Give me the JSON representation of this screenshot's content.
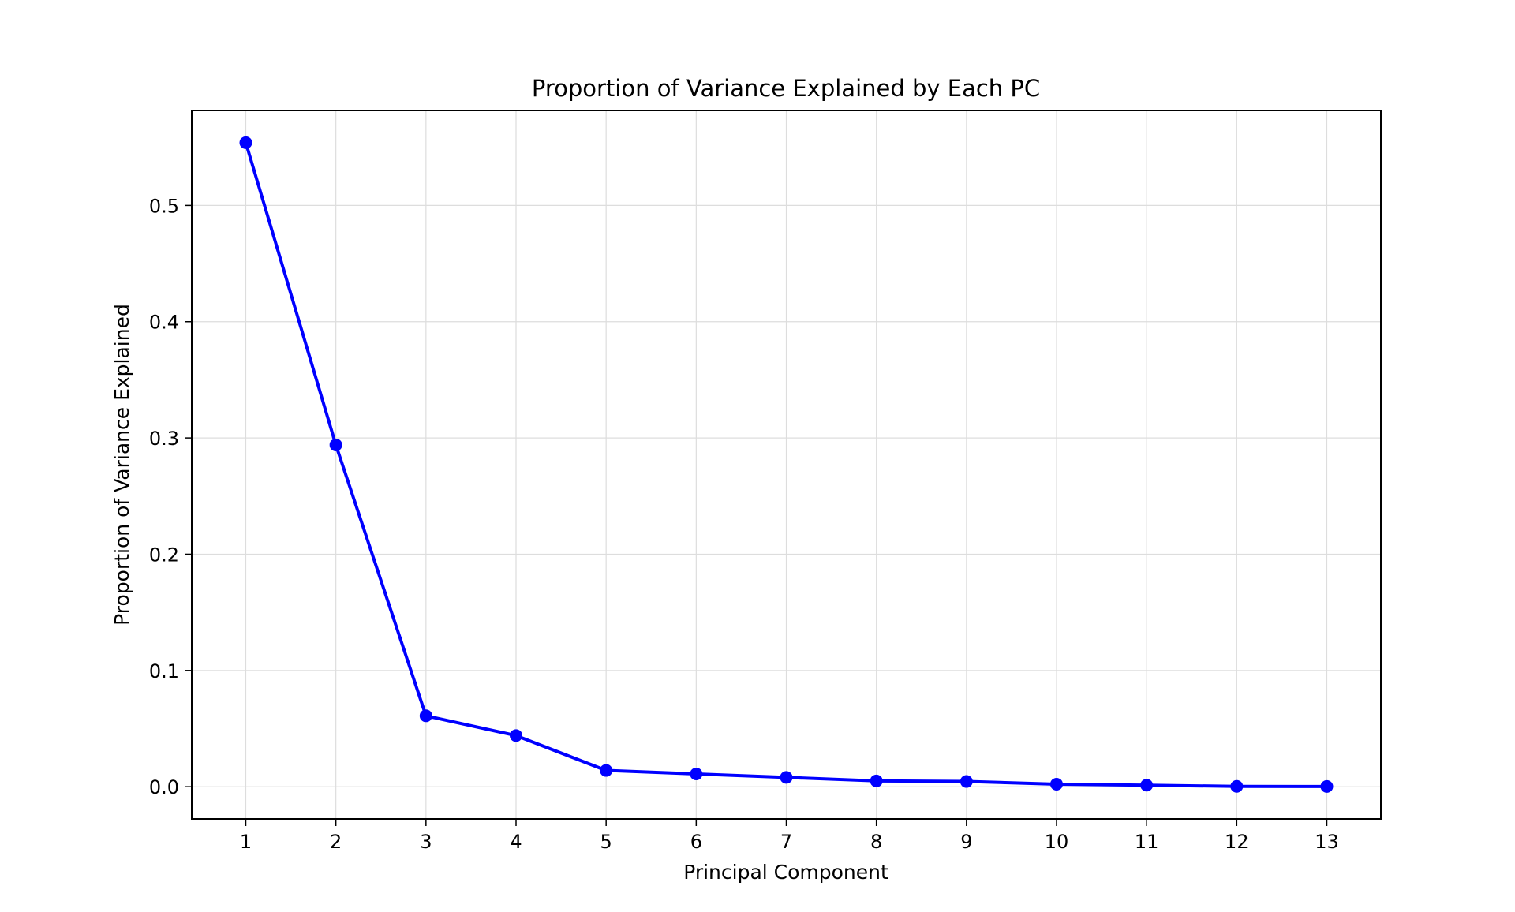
{
  "chart_data": {
    "type": "line",
    "title": "Proportion of Variance Explained by Each PC",
    "xlabel": "Principal Component",
    "ylabel": "Proportion of Variance Explained",
    "x": [
      1,
      2,
      3,
      4,
      5,
      6,
      7,
      8,
      9,
      10,
      11,
      12,
      13
    ],
    "xticks": [
      "1",
      "2",
      "3",
      "4",
      "5",
      "6",
      "7",
      "8",
      "9",
      "10",
      "11",
      "12",
      "13"
    ],
    "yticks": [
      0.0,
      0.1,
      0.2,
      0.3,
      0.4,
      0.5
    ],
    "ytick_labels": [
      "0.0",
      "0.1",
      "0.2",
      "0.3",
      "0.4",
      "0.5"
    ],
    "xlim": [
      0.4,
      13.6
    ],
    "ylim": [
      -0.0277,
      0.5817
    ],
    "grid": true,
    "series": [
      {
        "color": "#0000ff",
        "marker": "circle",
        "values": [
          0.554,
          0.294,
          0.061,
          0.044,
          0.014,
          0.011,
          0.008,
          0.005,
          0.0045,
          0.0022,
          0.0013,
          0.0003,
          0.0002
        ]
      }
    ]
  }
}
